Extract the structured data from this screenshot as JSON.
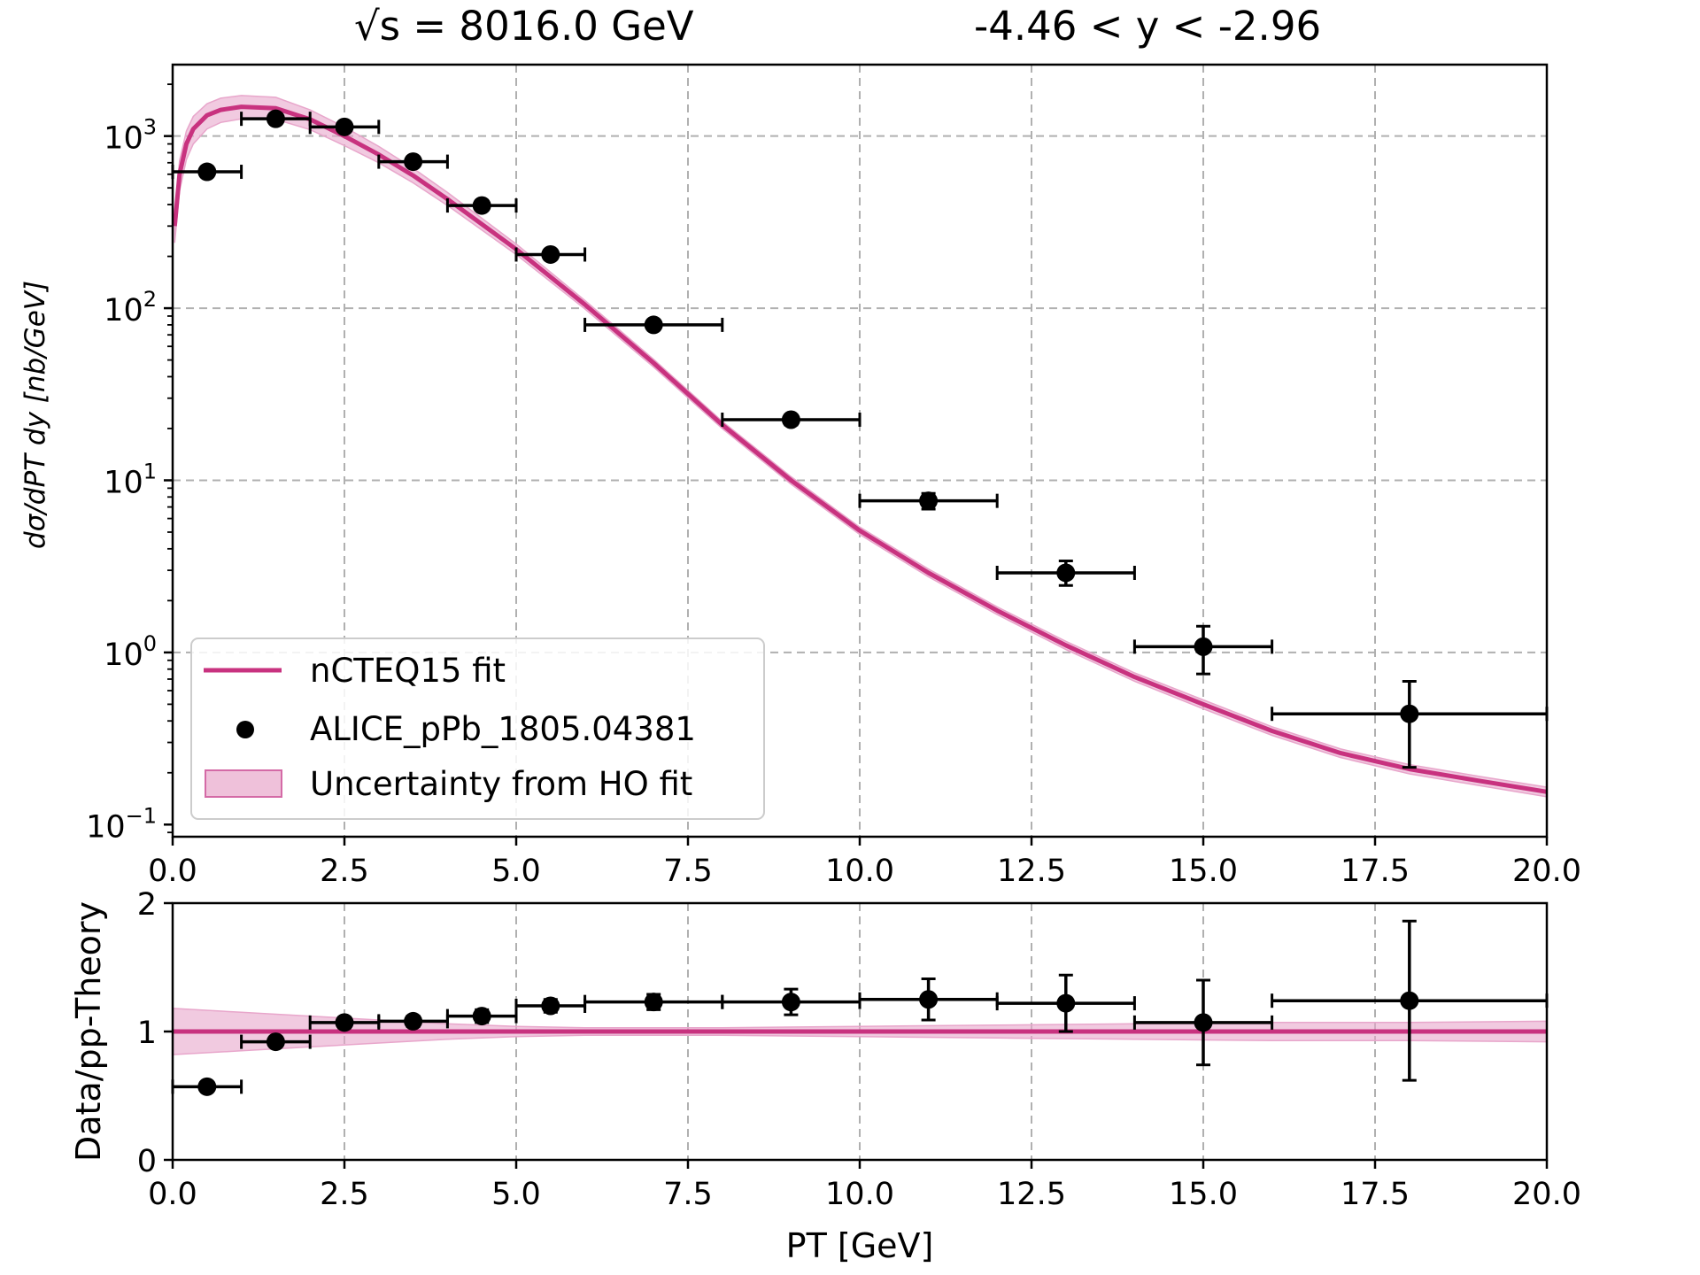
{
  "colors": {
    "theory": "#c8327f",
    "band": "#e8a6cb",
    "data": "#000000"
  },
  "titles": {
    "energy": "√s = 8016.0 GeV",
    "rapidity": "-4.46 < y < -2.96"
  },
  "legend": {
    "theory_label": "nCTEQ15 fit",
    "data_label": "ALICE_pPb_1805.04381",
    "band_label": "Uncertainty from HO fit"
  },
  "chart_data": [
    {
      "type": "scatter",
      "title": "√s = 8016.0 GeV      -4.46 < y < -2.96",
      "ylabel": "dσ/dPT dy [nb/GeV]",
      "yscale": "log",
      "xlim": [
        0,
        20
      ],
      "ylim": [
        0.085,
        2600
      ],
      "x_ticks": [
        "0.0",
        "2.5",
        "5.0",
        "7.5",
        "10.0",
        "12.5",
        "15.0",
        "17.5",
        "20.0"
      ],
      "y_ticks": [
        {
          "base": "10",
          "exp": "3",
          "value": 1000
        },
        {
          "base": "10",
          "exp": "2",
          "value": 100
        },
        {
          "base": "10",
          "exp": "1",
          "value": 10
        },
        {
          "base": "10",
          "exp": "0",
          "value": 1
        },
        {
          "base": "10",
          "exp": "−1",
          "value": 0.1
        }
      ],
      "grid": true,
      "legend_position": "lower-left",
      "series": [
        {
          "name": "ALICE_pPb_1805.04381",
          "kind": "points",
          "x": [
            0.5,
            1.5,
            2.5,
            3.5,
            4.5,
            5.5,
            7,
            9,
            11,
            13,
            15,
            18
          ],
          "y": [
            620,
            1260,
            1130,
            710,
            395,
            205,
            80,
            22.5,
            7.6,
            2.9,
            1.08,
            0.44
          ],
          "x_err": [
            0.5,
            0.5,
            0.5,
            0.5,
            0.5,
            0.5,
            1,
            1,
            1,
            1,
            1,
            2
          ],
          "y_low": [
            590,
            1200,
            1080,
            680,
            375,
            195,
            76,
            21,
            6.8,
            2.45,
            0.75,
            0.215
          ],
          "y_high": [
            650,
            1320,
            1180,
            745,
            415,
            215,
            84,
            24,
            8.4,
            3.4,
            1.42,
            0.68
          ]
        },
        {
          "name": "nCTEQ15 fit",
          "kind": "line",
          "x": [
            0.03,
            0.1,
            0.2,
            0.3,
            0.5,
            0.7,
            1.0,
            1.5,
            2.0,
            2.5,
            3.0,
            3.5,
            4.0,
            5.0,
            6.0,
            7.0,
            8.0,
            9.0,
            10.0,
            11.0,
            12.0,
            13.0,
            14.0,
            15.0,
            16.0,
            17.0,
            18.0,
            19.0,
            20.0
          ],
          "y": [
            300,
            600,
            900,
            1100,
            1320,
            1420,
            1480,
            1450,
            1250,
            1000,
            780,
            590,
            430,
            220,
            105,
            48,
            21,
            10,
            5.1,
            2.9,
            1.75,
            1.1,
            0.72,
            0.5,
            0.35,
            0.26,
            0.21,
            0.18,
            0.155
          ]
        },
        {
          "name": "Uncertainty from HO fit",
          "kind": "band",
          "x": [
            0.03,
            0.1,
            0.2,
            0.3,
            0.5,
            0.7,
            1.0,
            1.5,
            2.0,
            2.5,
            3.0,
            3.5,
            4.0,
            5.0,
            6.0,
            7.0,
            8.0,
            9.0,
            10.0,
            11.0,
            12.0,
            13.0,
            14.0,
            15.0,
            16.0,
            17.0,
            18.0,
            19.0,
            20.0
          ],
          "y_low": [
            240,
            480,
            730,
            900,
            1100,
            1200,
            1260,
            1250,
            1090,
            880,
            700,
            535,
            395,
            205,
            99,
            45.5,
            20,
            9.5,
            4.85,
            2.75,
            1.66,
            1.04,
            0.68,
            0.47,
            0.33,
            0.245,
            0.197,
            0.169,
            0.145
          ],
          "y_high": [
            360,
            720,
            1070,
            1300,
            1540,
            1660,
            1720,
            1680,
            1420,
            1130,
            870,
            650,
            470,
            236,
            111,
            50.5,
            22,
            10.5,
            5.35,
            3.05,
            1.84,
            1.16,
            0.76,
            0.53,
            0.37,
            0.275,
            0.223,
            0.191,
            0.165
          ]
        }
      ]
    },
    {
      "type": "scatter",
      "xlabel": "PT [GeV]",
      "ylabel": "Data/pp-Theory",
      "xlim": [
        0,
        20
      ],
      "ylim": [
        0,
        2
      ],
      "x_ticks": [
        "0.0",
        "2.5",
        "5.0",
        "7.5",
        "10.0",
        "12.5",
        "15.0",
        "17.5",
        "20.0"
      ],
      "y_ticks": [
        "0",
        "1",
        "2"
      ],
      "grid": true,
      "series": [
        {
          "name": "ALICE_pPb_1805.04381",
          "kind": "points",
          "x": [
            0.5,
            1.5,
            2.5,
            3.5,
            4.5,
            5.5,
            7,
            9,
            11,
            13,
            15,
            18
          ],
          "y": [
            0.57,
            0.92,
            1.07,
            1.08,
            1.12,
            1.2,
            1.23,
            1.23,
            1.25,
            1.22,
            1.07,
            1.24
          ],
          "x_err": [
            0.5,
            0.5,
            0.5,
            0.5,
            0.5,
            0.5,
            1,
            1,
            1,
            1,
            1,
            2
          ],
          "y_err": [
            0.02,
            0.03,
            0.04,
            0.04,
            0.05,
            0.05,
            0.06,
            0.1,
            0.16,
            0.22,
            0.33,
            0.62
          ]
        },
        {
          "name": "nCTEQ15 fit",
          "kind": "line",
          "x": [
            0,
            20
          ],
          "y": [
            1,
            1
          ]
        },
        {
          "name": "Uncertainty from HO fit",
          "kind": "band",
          "x": [
            0,
            1,
            2,
            3,
            4,
            5,
            6,
            8,
            10,
            12,
            14,
            16,
            18,
            20
          ],
          "y_low": [
            0.82,
            0.85,
            0.88,
            0.91,
            0.94,
            0.96,
            0.97,
            0.97,
            0.96,
            0.95,
            0.94,
            0.93,
            0.93,
            0.92
          ],
          "y_high": [
            1.18,
            1.15,
            1.12,
            1.09,
            1.06,
            1.04,
            1.03,
            1.03,
            1.04,
            1.05,
            1.06,
            1.07,
            1.07,
            1.08
          ]
        }
      ]
    }
  ]
}
